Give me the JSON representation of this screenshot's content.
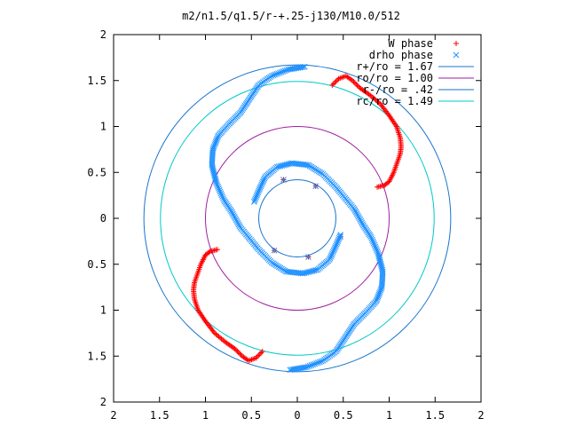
{
  "chart_data": {
    "type": "scatter",
    "title": "m2/n1.5/q1.5/r-+.25-j130/M10.0/512",
    "xlabel": "",
    "ylabel": "",
    "xlim": [
      -2,
      2
    ],
    "ylim": [
      -2,
      2
    ],
    "xticks": [
      -2,
      -1.5,
      -1,
      -0.5,
      0,
      0.5,
      1,
      1.5,
      2
    ],
    "yticks": [
      -2,
      -1.5,
      -1,
      -0.5,
      0,
      0.5,
      1,
      1.5,
      2
    ],
    "xtick_labels": [
      "2",
      "1.5",
      "1",
      "0.5",
      "0",
      "0.5",
      "1",
      "1.5",
      "2"
    ],
    "ytick_labels": [
      "2",
      "1.5",
      "1",
      "0.5",
      "0",
      "0.5",
      "1",
      "1.5",
      "2"
    ],
    "grid": false,
    "legend_position": "top-right",
    "point_series": [
      {
        "name": "W phase",
        "marker": "plus",
        "color": "#ff0000",
        "arms": [
          [
            [
              0.38,
              1.45
            ],
            [
              0.45,
              1.52
            ],
            [
              0.53,
              1.55
            ],
            [
              0.6,
              1.5
            ],
            [
              0.68,
              1.42
            ],
            [
              0.78,
              1.35
            ],
            [
              0.9,
              1.25
            ],
            [
              1.0,
              1.12
            ],
            [
              1.08,
              1.0
            ],
            [
              1.12,
              0.88
            ],
            [
              1.13,
              0.78
            ],
            [
              1.12,
              0.7
            ],
            [
              1.05,
              0.5
            ],
            [
              1.0,
              0.4
            ],
            [
              0.95,
              0.36
            ],
            [
              0.87,
              0.34
            ]
          ],
          [
            [
              -0.38,
              -1.45
            ],
            [
              -0.45,
              -1.52
            ],
            [
              -0.53,
              -1.55
            ],
            [
              -0.6,
              -1.5
            ],
            [
              -0.68,
              -1.42
            ],
            [
              -0.78,
              -1.35
            ],
            [
              -0.9,
              -1.25
            ],
            [
              -1.0,
              -1.12
            ],
            [
              -1.08,
              -1.0
            ],
            [
              -1.12,
              -0.88
            ],
            [
              -1.13,
              -0.78
            ],
            [
              -1.12,
              -0.7
            ],
            [
              -1.05,
              -0.5
            ],
            [
              -1.0,
              -0.4
            ],
            [
              -0.95,
              -0.36
            ],
            [
              -0.87,
              -0.34
            ]
          ]
        ],
        "isolated": [
          [
            -0.15,
            0.42
          ],
          [
            0.2,
            0.35
          ],
          [
            0.47,
            -0.2
          ],
          [
            0.12,
            -0.42
          ],
          [
            -0.25,
            -0.35
          ]
        ]
      },
      {
        "name": "drho phase",
        "marker": "cross",
        "color": "#1e90ff",
        "arms": [
          [
            [
              0.08,
              1.65
            ],
            [
              -0.1,
              1.62
            ],
            [
              -0.28,
              1.55
            ],
            [
              -0.42,
              1.45
            ],
            [
              -0.52,
              1.3
            ],
            [
              -0.62,
              1.15
            ],
            [
              -0.75,
              1.02
            ],
            [
              -0.86,
              0.9
            ],
            [
              -0.92,
              0.75
            ],
            [
              -0.93,
              0.58
            ],
            [
              -0.88,
              0.38
            ],
            [
              -0.8,
              0.2
            ],
            [
              -0.72,
              0.08
            ],
            [
              -0.62,
              -0.1
            ],
            [
              -0.52,
              -0.22
            ],
            [
              -0.42,
              -0.34
            ],
            [
              -0.28,
              -0.48
            ],
            [
              -0.12,
              -0.58
            ],
            [
              0.06,
              -0.6
            ],
            [
              0.22,
              -0.56
            ],
            [
              0.35,
              -0.45
            ],
            [
              0.42,
              -0.3
            ],
            [
              0.47,
              -0.18
            ]
          ],
          [
            [
              -0.08,
              -1.65
            ],
            [
              0.1,
              -1.62
            ],
            [
              0.28,
              -1.55
            ],
            [
              0.42,
              -1.45
            ],
            [
              0.52,
              -1.3
            ],
            [
              0.62,
              -1.15
            ],
            [
              0.75,
              -1.02
            ],
            [
              0.86,
              -0.9
            ],
            [
              0.92,
              -0.75
            ],
            [
              0.93,
              -0.58
            ],
            [
              0.88,
              -0.38
            ],
            [
              0.8,
              -0.2
            ],
            [
              0.72,
              -0.08
            ],
            [
              0.62,
              0.1
            ],
            [
              0.52,
              0.22
            ],
            [
              0.42,
              0.34
            ],
            [
              0.28,
              0.48
            ],
            [
              0.12,
              0.58
            ],
            [
              -0.06,
              0.6
            ],
            [
              -0.22,
              0.56
            ],
            [
              -0.35,
              0.45
            ],
            [
              -0.42,
              0.3
            ],
            [
              -0.47,
              0.18
            ]
          ]
        ],
        "isolated": [
          [
            -0.15,
            0.42
          ],
          [
            0.2,
            0.35
          ],
          [
            0.47,
            -0.2
          ],
          [
            0.12,
            -0.42
          ],
          [
            -0.25,
            -0.35
          ]
        ]
      }
    ],
    "circle_series": [
      {
        "name": "r+/ro = 1.67",
        "radius": 1.67,
        "color": "#1874cd"
      },
      {
        "name": "ro/ro = 1.00",
        "radius": 1.0,
        "color": "#a020a0"
      },
      {
        "name": "r-/ro = .42",
        "radius": 0.42,
        "color": "#1874cd"
      },
      {
        "name": "rc/ro = 1.49",
        "radius": 1.49,
        "color": "#00c8c8"
      }
    ]
  }
}
